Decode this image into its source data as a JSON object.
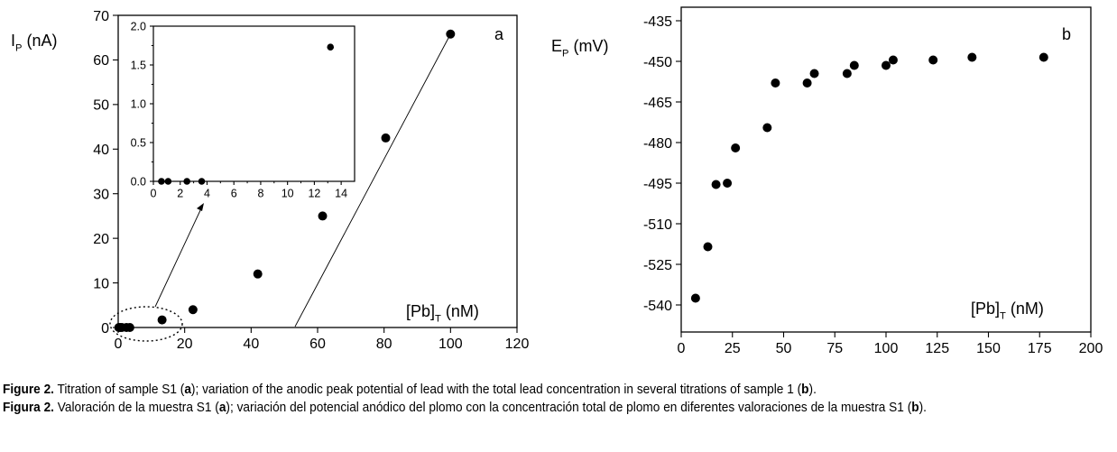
{
  "chart_data": [
    {
      "panel": "a",
      "type": "scatter",
      "panel_label": "a",
      "ylabel_main": "I",
      "ylabel_sub": "P",
      "ylabel_unit": " (nA)",
      "xlabel_main": "[Pb]",
      "xlabel_sub": "T",
      "xlabel_unit": " (nM)",
      "xlim": [
        0,
        120
      ],
      "ylim": [
        0,
        70
      ],
      "xticks": [
        0,
        20,
        40,
        60,
        80,
        100,
        120
      ],
      "yticks": [
        0,
        10,
        20,
        30,
        40,
        50,
        60,
        70
      ],
      "x": [
        0.2,
        0.6,
        1.1,
        2.5,
        3.5,
        13.2,
        22.5,
        42,
        61.5,
        80.5,
        100
      ],
      "y": [
        0,
        0,
        0,
        0,
        0,
        1.7,
        4,
        12,
        25,
        42.5,
        65.8
      ],
      "inset": {
        "type": "scatter",
        "xlim": [
          0,
          15
        ],
        "ylim": [
          0,
          2
        ],
        "xticks": [
          0,
          2,
          4,
          6,
          8,
          10,
          12,
          14
        ],
        "yticks": [
          "0.0",
          "0.5",
          "1.0",
          "1.5",
          "2.0"
        ],
        "x": [
          0.6,
          1.1,
          2.5,
          3.6,
          13.2
        ],
        "y": [
          0,
          0,
          0,
          0,
          1.73
        ]
      }
    },
    {
      "panel": "b",
      "type": "scatter",
      "panel_label": "b",
      "ylabel_main": "E",
      "ylabel_sub": "P",
      "ylabel_unit": " (mV)",
      "xlabel_main": "[Pb]",
      "xlabel_sub": "T",
      "xlabel_unit": " (nM)",
      "xlim": [
        0,
        200
      ],
      "ylim": [
        -550,
        -430
      ],
      "xticks": [
        0,
        25,
        50,
        75,
        100,
        125,
        150,
        175,
        200
      ],
      "yticks": [
        -435,
        -450,
        -465,
        -480,
        -495,
        -510,
        -525,
        -540
      ],
      "x": [
        7,
        13,
        17,
        22.5,
        26.5,
        42,
        46,
        61.5,
        65,
        81,
        84.5,
        100,
        103.5,
        123,
        142,
        177
      ],
      "y": [
        -537.5,
        -518.5,
        -495.5,
        -495,
        -482,
        -474.5,
        -458,
        -458,
        -454.5,
        -454.5,
        -451.5,
        -451.5,
        -449.5,
        -449.5,
        -448.5,
        -448.5
      ]
    }
  ],
  "caption": {
    "en_label": "Figure 2.",
    "en_text_1": " Titration of sample S1 (",
    "en_bold_a": "a",
    "en_text_2": "); variation of the anodic peak potential of lead with the total lead concentration in several titrations of sample 1  (",
    "en_bold_b": "b",
    "en_text_3": ").",
    "es_label": "Figura 2.",
    "es_text_1": " Valoración de la muestra S1 (",
    "es_bold_a": "a",
    "es_text_2": "); variación del potencial anódico del plomo con la concentración total de plomo en diferentes valoraciones de la muestra S1 (",
    "es_bold_b": "b",
    "es_text_3": ")."
  }
}
